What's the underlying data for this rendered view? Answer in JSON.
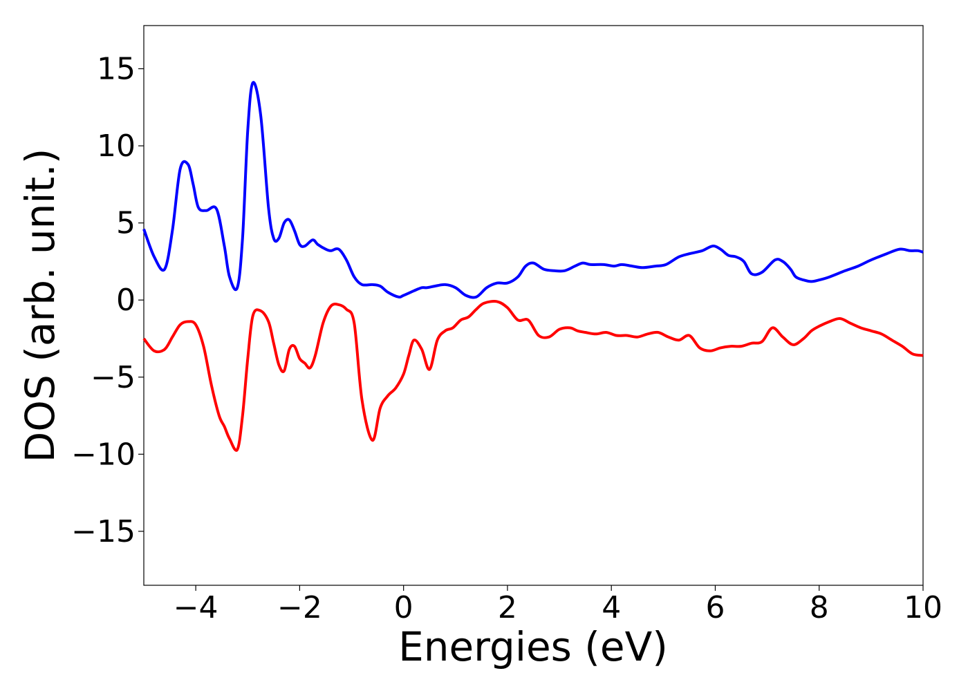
{
  "chart_data": {
    "type": "line",
    "title": "",
    "xlabel": "Energies (eV)",
    "ylabel": "DOS (arb. unit.)",
    "xlim": [
      -5,
      10
    ],
    "ylim": [
      -18.5,
      17.8
    ],
    "x_ticks": [
      -4,
      -2,
      0,
      2,
      4,
      6,
      8,
      10
    ],
    "x_tick_labels": [
      "−4",
      "−2",
      "0",
      "2",
      "4",
      "6",
      "8",
      "10"
    ],
    "y_ticks": [
      -15,
      -10,
      -5,
      0,
      5,
      10,
      15
    ],
    "y_tick_labels": [
      "−15",
      "−10",
      "−5",
      "0",
      "5",
      "10",
      "15"
    ],
    "grid": false,
    "legend": "none",
    "series": [
      {
        "color": "#0000ff",
        "x": [
          -5.0,
          -4.8,
          -4.6,
          -4.45,
          -4.3,
          -4.15,
          -4.05,
          -3.95,
          -3.8,
          -3.6,
          -3.45,
          -3.35,
          -3.2,
          -3.1,
          -3.0,
          -2.9,
          -2.75,
          -2.6,
          -2.5,
          -2.4,
          -2.3,
          -2.2,
          -2.1,
          -2.0,
          -1.9,
          -1.75,
          -1.65,
          -1.5,
          -1.4,
          -1.25,
          -1.1,
          -0.95,
          -0.8,
          -0.6,
          -0.45,
          -0.3,
          -0.1,
          0.0,
          0.2,
          0.35,
          0.45,
          0.6,
          0.8,
          1.0,
          1.2,
          1.4,
          1.6,
          1.8,
          2.0,
          2.2,
          2.35,
          2.5,
          2.7,
          2.9,
          3.1,
          3.3,
          3.45,
          3.6,
          3.85,
          4.05,
          4.2,
          4.4,
          4.6,
          4.85,
          5.05,
          5.3,
          5.5,
          5.75,
          5.95,
          6.1,
          6.25,
          6.4,
          6.55,
          6.7,
          6.9,
          7.15,
          7.3,
          7.45,
          7.55,
          7.7,
          7.85,
          8.0,
          8.2,
          8.5,
          8.75,
          9.0,
          9.3,
          9.55,
          9.75,
          9.9,
          10.0
        ],
        "y": [
          4.6,
          2.8,
          2.0,
          4.5,
          8.5,
          8.8,
          7.5,
          6.0,
          5.8,
          5.9,
          3.5,
          1.5,
          0.8,
          4.0,
          11.0,
          14.1,
          12.0,
          6.0,
          4.0,
          4.0,
          5.0,
          5.2,
          4.5,
          3.6,
          3.5,
          3.9,
          3.6,
          3.3,
          3.2,
          3.3,
          2.6,
          1.5,
          1.0,
          1.0,
          0.9,
          0.5,
          0.2,
          0.3,
          0.6,
          0.8,
          0.8,
          0.9,
          1.0,
          0.8,
          0.3,
          0.2,
          0.8,
          1.1,
          1.1,
          1.5,
          2.2,
          2.4,
          2.0,
          1.9,
          1.9,
          2.2,
          2.4,
          2.3,
          2.3,
          2.2,
          2.3,
          2.2,
          2.1,
          2.2,
          2.3,
          2.8,
          3.0,
          3.2,
          3.5,
          3.3,
          2.9,
          2.8,
          2.5,
          1.7,
          1.8,
          2.6,
          2.5,
          2.0,
          1.5,
          1.3,
          1.2,
          1.3,
          1.5,
          1.9,
          2.2,
          2.6,
          3.0,
          3.3,
          3.2,
          3.2,
          3.1
        ]
      },
      {
        "color": "#ff0000",
        "x": [
          -5.0,
          -4.8,
          -4.6,
          -4.45,
          -4.3,
          -4.15,
          -4.0,
          -3.85,
          -3.7,
          -3.55,
          -3.45,
          -3.35,
          -3.2,
          -3.1,
          -3.0,
          -2.9,
          -2.75,
          -2.6,
          -2.5,
          -2.4,
          -2.3,
          -2.2,
          -2.1,
          -2.0,
          -1.9,
          -1.8,
          -1.7,
          -1.55,
          -1.4,
          -1.25,
          -1.1,
          -0.95,
          -0.8,
          -0.6,
          -0.45,
          -0.3,
          -0.15,
          0.0,
          0.1,
          0.2,
          0.35,
          0.5,
          0.65,
          0.8,
          0.95,
          1.1,
          1.25,
          1.4,
          1.55,
          1.8,
          2.0,
          2.2,
          2.4,
          2.6,
          2.8,
          3.0,
          3.2,
          3.35,
          3.5,
          3.7,
          3.9,
          4.1,
          4.3,
          4.5,
          4.7,
          4.9,
          5.1,
          5.3,
          5.5,
          5.7,
          5.9,
          6.1,
          6.3,
          6.5,
          6.7,
          6.9,
          7.1,
          7.3,
          7.5,
          7.7,
          7.85,
          8.0,
          8.2,
          8.4,
          8.6,
          8.8,
          9.0,
          9.2,
          9.4,
          9.6,
          9.8,
          10.0
        ],
        "y": [
          -2.5,
          -3.3,
          -3.2,
          -2.4,
          -1.6,
          -1.4,
          -1.6,
          -3.0,
          -5.5,
          -7.5,
          -8.2,
          -9.0,
          -9.7,
          -7.5,
          -3.8,
          -1.0,
          -0.7,
          -1.4,
          -2.8,
          -4.2,
          -4.6,
          -3.2,
          -3.0,
          -3.8,
          -4.1,
          -4.4,
          -3.6,
          -1.5,
          -0.4,
          -0.3,
          -0.6,
          -1.5,
          -6.5,
          -9.1,
          -7.0,
          -6.2,
          -5.7,
          -4.8,
          -3.6,
          -2.6,
          -3.2,
          -4.5,
          -2.6,
          -2.0,
          -1.8,
          -1.3,
          -1.1,
          -0.6,
          -0.2,
          -0.1,
          -0.5,
          -1.3,
          -1.3,
          -2.3,
          -2.4,
          -1.9,
          -1.8,
          -2.0,
          -2.1,
          -2.2,
          -2.1,
          -2.3,
          -2.3,
          -2.4,
          -2.2,
          -2.1,
          -2.4,
          -2.6,
          -2.3,
          -3.1,
          -3.3,
          -3.1,
          -3.0,
          -3.0,
          -2.8,
          -2.7,
          -1.8,
          -2.4,
          -2.9,
          -2.5,
          -2.0,
          -1.7,
          -1.4,
          -1.2,
          -1.5,
          -1.8,
          -2.0,
          -2.2,
          -2.6,
          -3.0,
          -3.5,
          -3.6
        ]
      }
    ]
  }
}
